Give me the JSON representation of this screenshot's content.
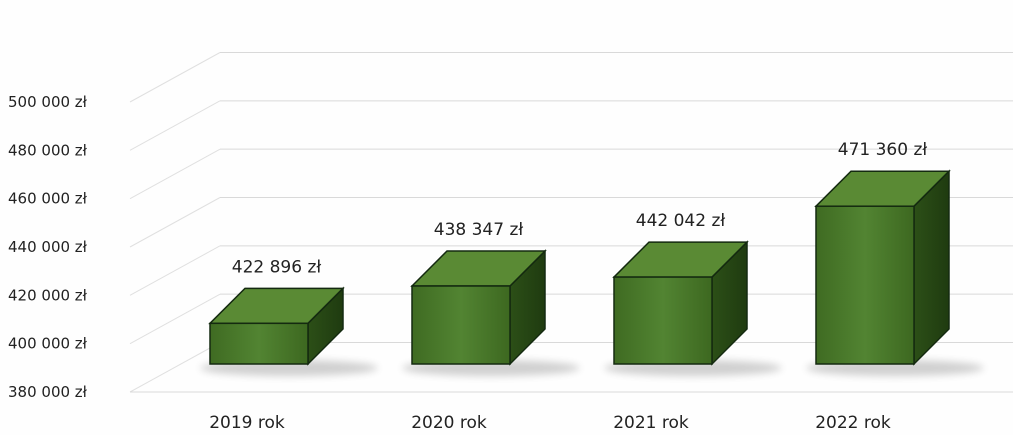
{
  "chart_data": {
    "type": "bar",
    "style": "3d-column",
    "categories": [
      "2019 rok",
      "2020 rok",
      "2021 rok",
      "2022 rok"
    ],
    "values": [
      422896,
      438347,
      442042,
      471360
    ],
    "data_labels": [
      "422 896 zł",
      "438 347 zł",
      "442 042 zł",
      "471 360 zł"
    ],
    "ylim": [
      380000,
      500000
    ],
    "yticks": [
      380000,
      400000,
      420000,
      440000,
      460000,
      480000,
      500000
    ],
    "ytick_labels": [
      "380 000 zł",
      "400 000 zł",
      "420 000 zł",
      "440 000 zł",
      "460 000 zł",
      "480 000 zł",
      "500 000 zł"
    ],
    "grid": true,
    "legend": "none",
    "colors": {
      "bar_front": "#4a7a28",
      "bar_top": "#5a8a34",
      "bar_side": "#2e5318",
      "outline": "#142a10"
    }
  }
}
